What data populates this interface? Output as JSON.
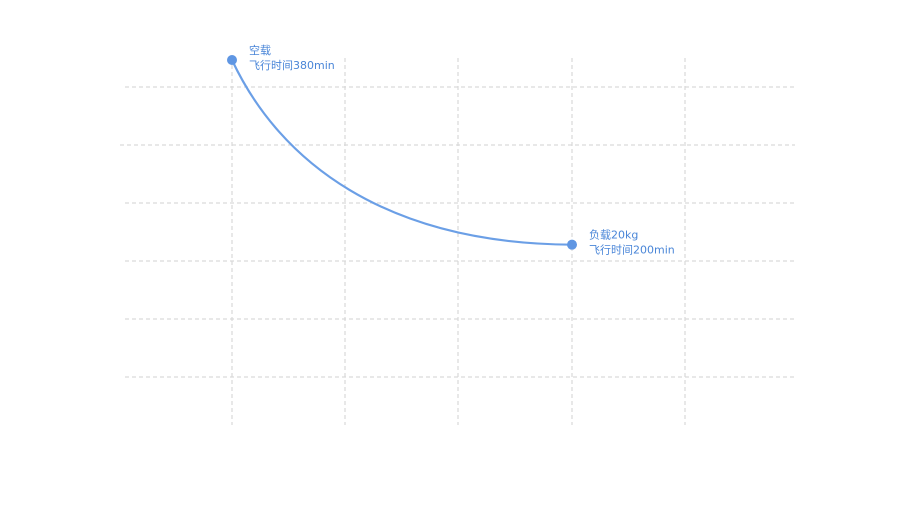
{
  "chart_data": {
    "type": "line",
    "grid": true,
    "series": [
      {
        "color": "#6b9fe6",
        "points": [
          {
            "x": 0,
            "y": 380,
            "label_lines": [
              "空载",
              "飞行时间380min"
            ]
          },
          {
            "x": 20,
            "y": 200,
            "label_lines": [
              "负载20kg",
              "飞行时间200min"
            ]
          }
        ]
      }
    ]
  }
}
